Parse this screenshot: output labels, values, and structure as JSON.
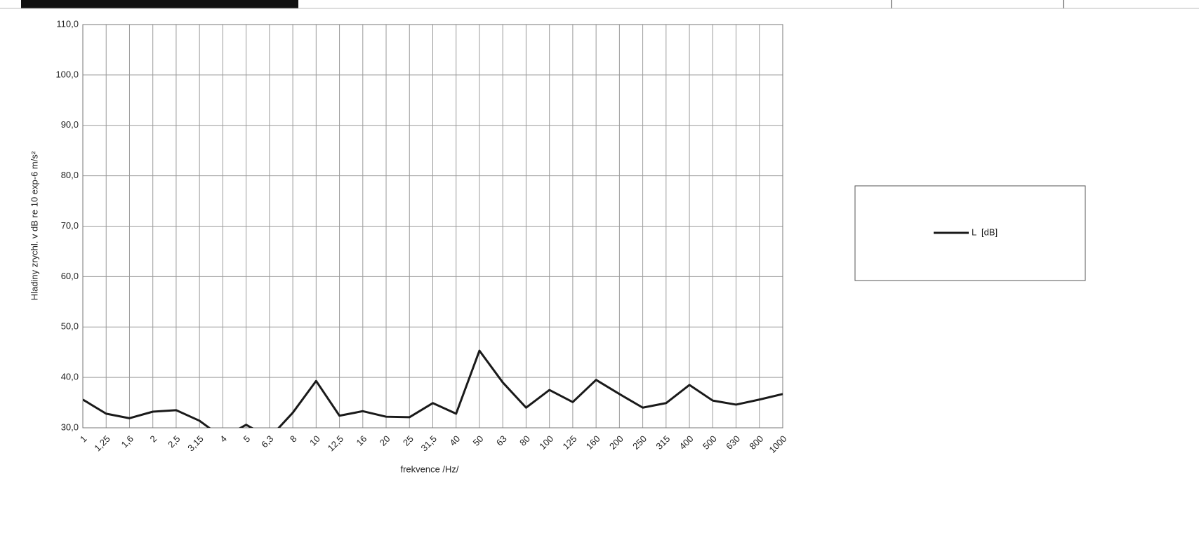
{
  "chart_data": {
    "type": "line",
    "x_label": "frekvence /Hz/",
    "y_label": "Hladiny zrychl. v dB re 10 exp-6 m/s²",
    "categories": [
      "1",
      "1,25",
      "1,6",
      "2",
      "2,5",
      "3,15",
      "4",
      "5",
      "6,3",
      "8",
      "10",
      "12,5",
      "16",
      "20",
      "25",
      "31,5",
      "40",
      "50",
      "63",
      "80",
      "100",
      "125",
      "160",
      "200",
      "250",
      "315",
      "400",
      "500",
      "630",
      "800",
      "1000"
    ],
    "series": [
      {
        "name": "L  [dB]",
        "color": "#1a1a1a",
        "values": [
          35.6,
          32.8,
          31.9,
          33.2,
          33.5,
          31.4,
          28,
          30.6,
          28,
          33,
          39.3,
          32.4,
          33.3,
          32.2,
          32.1,
          34.9,
          32.8,
          45.3,
          39.0,
          34.0,
          37.5,
          35.1,
          39.5,
          36.7,
          34.0,
          34.9,
          38.5,
          35.4,
          34.6,
          35.6,
          36.7
        ]
      }
    ],
    "ylim": [
      30,
      110
    ],
    "yticks": [
      {
        "value": 30,
        "label": "30,0"
      },
      {
        "value": 40,
        "label": "40,0"
      },
      {
        "value": 50,
        "label": "50,0"
      },
      {
        "value": 60,
        "label": "60,0"
      },
      {
        "value": 70,
        "label": "70,0"
      },
      {
        "value": 80,
        "label": "80,0"
      },
      {
        "value": 90,
        "label": "90,0"
      },
      {
        "value": 100,
        "label": "100,0"
      },
      {
        "value": 110,
        "label": "110,0"
      }
    ],
    "grid": true,
    "legend": "right"
  }
}
